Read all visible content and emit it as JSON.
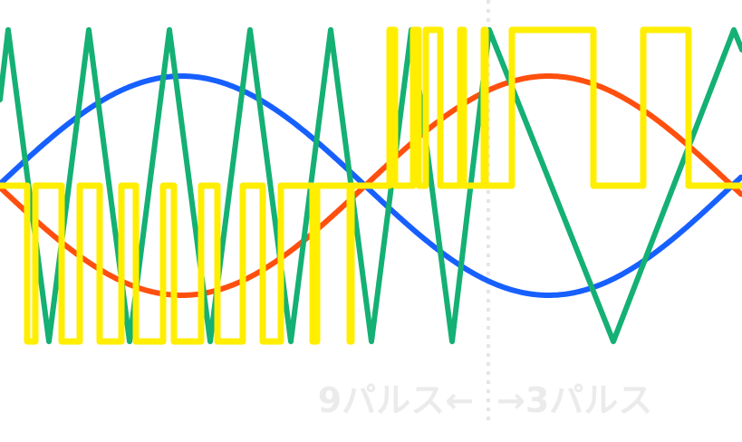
{
  "labels": {
    "left": "9パルス←",
    "right": "→3パルス"
  },
  "colors": {
    "carrier": "#14b074",
    "signal_a": "#1760ff",
    "signal_b": "#ff4f0f",
    "pwm": "#ffee00",
    "divider": "#e6e6e6"
  }
}
